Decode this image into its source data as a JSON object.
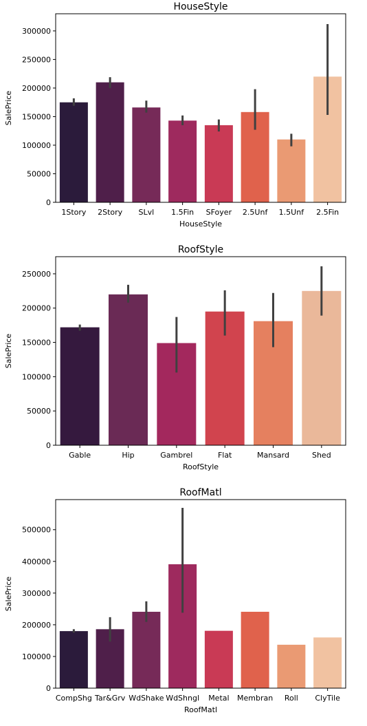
{
  "chart_data": [
    {
      "type": "bar",
      "title": "HouseStyle",
      "xlabel": "HouseStyle",
      "ylabel": "SalePrice",
      "categories": [
        "1Story",
        "2Story",
        "SLvl",
        "1.5Fin",
        "SFoyer",
        "2.5Unf",
        "1.5Unf",
        "2.5Fin"
      ],
      "values": [
        175000,
        210000,
        166000,
        143000,
        135000,
        158000,
        110000,
        220000
      ],
      "error_low": [
        169000,
        200000,
        157000,
        135000,
        124000,
        127000,
        98000,
        153000
      ],
      "error_high": [
        182000,
        219000,
        178000,
        152000,
        145000,
        198000,
        120000,
        312000
      ],
      "ylim": [
        0,
        330000
      ],
      "yticks": [
        0,
        50000,
        100000,
        150000,
        200000,
        250000,
        300000
      ],
      "colors": [
        "#2b1b3b",
        "#4f1f4a",
        "#762a58",
        "#9e2a5e",
        "#c93a55",
        "#e0624c",
        "#ea9a73",
        "#f1c2a1"
      ]
    },
    {
      "type": "bar",
      "title": "RoofStyle",
      "xlabel": "RoofStyle",
      "ylabel": "SalePrice",
      "categories": [
        "Gable",
        "Hip",
        "Gambrel",
        "Flat",
        "Mansard",
        "Shed"
      ],
      "values": [
        172000,
        220000,
        149000,
        195000,
        181000,
        225000
      ],
      "error_low": [
        167000,
        208000,
        106000,
        160000,
        143000,
        189000
      ],
      "error_high": [
        176000,
        234000,
        187000,
        226000,
        222000,
        261000
      ],
      "ylim": [
        0,
        275000
      ],
      "yticks": [
        0,
        50000,
        100000,
        150000,
        200000,
        250000
      ],
      "colors": [
        "#35193e",
        "#6a2a55",
        "#a3285d",
        "#d1444e",
        "#e5805f",
        "#eab89a"
      ]
    },
    {
      "type": "bar",
      "title": "RoofMatl",
      "xlabel": "RoofMatl",
      "ylabel": "SalePrice",
      "categories": [
        "CompShg",
        "Tar&Grv",
        "WdShake",
        "WdShngl",
        "Metal",
        "Membran",
        "Roll",
        "ClyTile"
      ],
      "values": [
        180000,
        186000,
        241000,
        391000,
        181000,
        241000,
        137000,
        160000
      ],
      "error_low": [
        175000,
        147000,
        209000,
        238000,
        181000,
        241000,
        137000,
        160000
      ],
      "error_high": [
        186000,
        224000,
        274000,
        569000,
        181000,
        241000,
        137000,
        160000
      ],
      "ylim": [
        0,
        595000
      ],
      "yticks": [
        0,
        100000,
        200000,
        300000,
        400000,
        500000
      ],
      "colors": [
        "#2b1b3b",
        "#4f1f4a",
        "#762a58",
        "#9e2a5e",
        "#c93a55",
        "#e0624c",
        "#ea9a73",
        "#f1c2a1"
      ]
    }
  ]
}
